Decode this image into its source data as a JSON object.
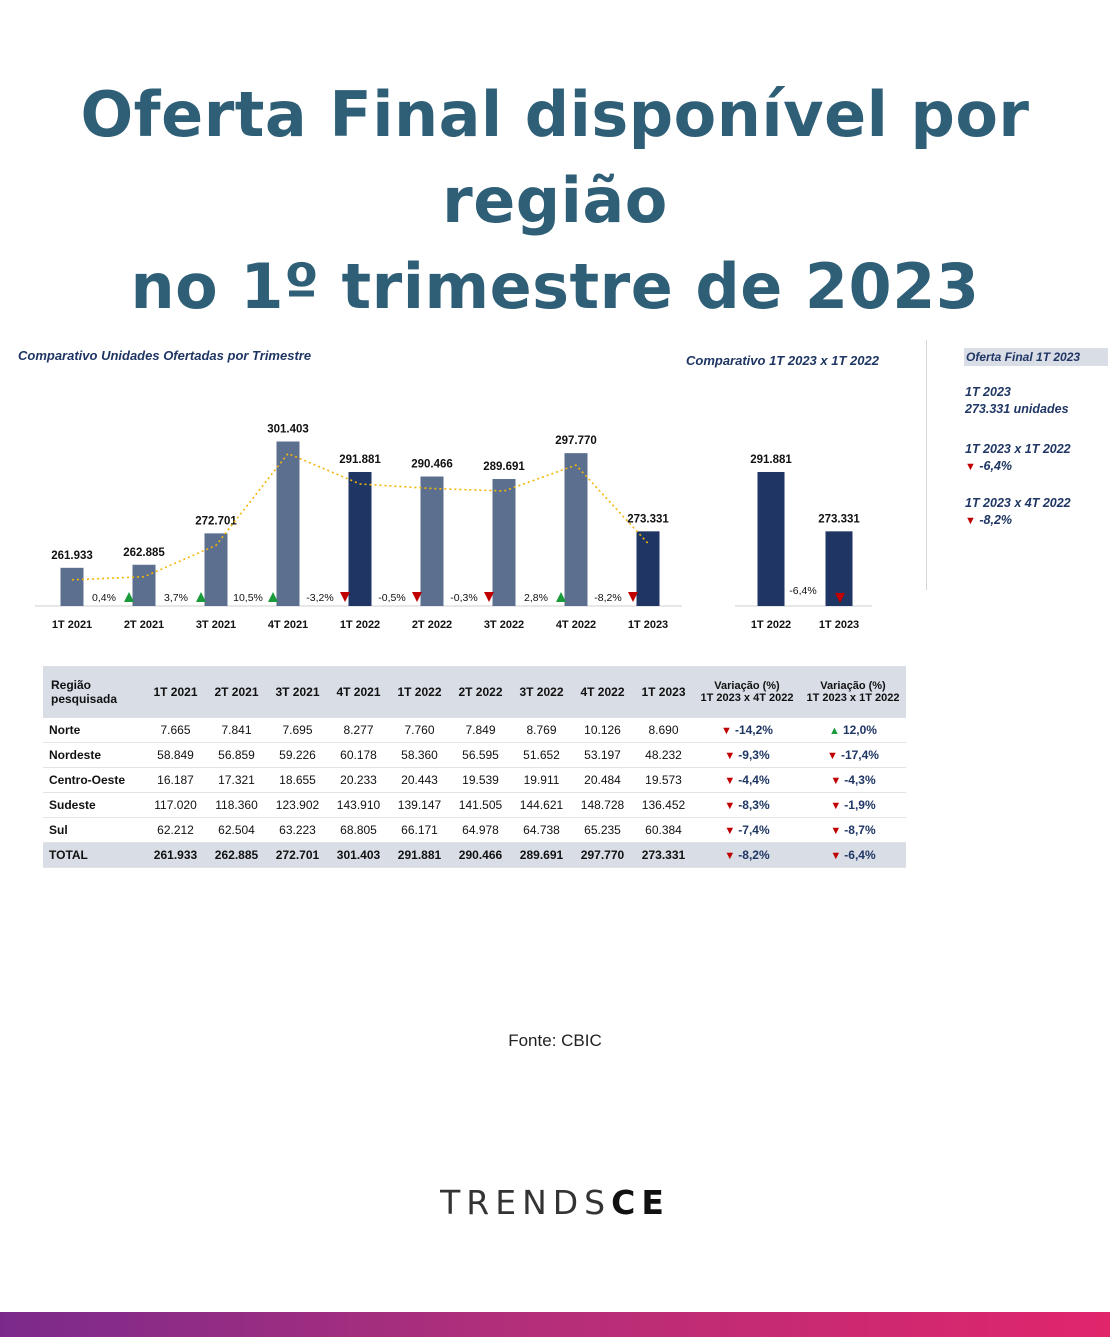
{
  "headline": {
    "line1": "Oferta Final disponível por região",
    "line2": "no 1º trimestre de 2023"
  },
  "colors": {
    "title": "#2e5f77",
    "bar_light": "#5c6f8f",
    "bar_dark": "#1f3664",
    "trend_line": "#f2b705",
    "arrow_down": "#c00000",
    "arrow_up": "#1a9a3a"
  },
  "chart_data": [
    {
      "type": "bar",
      "title": "Comparativo Unidades Ofertadas por Trimestre",
      "categories": [
        "1T 2021",
        "2T 2021",
        "3T 2021",
        "4T 2021",
        "1T 2022",
        "2T 2022",
        "3T 2022",
        "4T 2022",
        "1T 2023"
      ],
      "values": [
        261933,
        262885,
        272701,
        301403,
        291881,
        290466,
        289691,
        297770,
        273331
      ],
      "value_labels": [
        "261.933",
        "262.885",
        "272.701",
        "301.403",
        "291.881",
        "290.466",
        "289.691",
        "297.770",
        "273.331"
      ],
      "highlighted": [
        false,
        false,
        false,
        false,
        true,
        false,
        false,
        false,
        true
      ],
      "variations": [
        {
          "label": "0,4%",
          "dir": "up"
        },
        {
          "label": "3,7%",
          "dir": "up"
        },
        {
          "label": "10,5%",
          "dir": "up"
        },
        {
          "label": "-3,2%",
          "dir": "down"
        },
        {
          "label": "-0,5%",
          "dir": "down"
        },
        {
          "label": "-0,3%",
          "dir": "down"
        },
        {
          "label": "2,8%",
          "dir": "up"
        },
        {
          "label": "-8,2%",
          "dir": "down"
        }
      ],
      "trend_line": true,
      "ylim": [
        250000,
        305000
      ]
    },
    {
      "type": "bar",
      "title": "Comparativo 1T 2023 x 1T 2022",
      "categories": [
        "1T 2022",
        "1T 2023"
      ],
      "values": [
        291881,
        273331
      ],
      "value_labels": [
        "291.881",
        "273.331"
      ],
      "variation": {
        "label": "-6,4%",
        "dir": "down"
      },
      "ylim": [
        250000,
        305000
      ]
    }
  ],
  "side_panel": {
    "title": "Oferta Final 1T 2023",
    "period": "1T 2023",
    "units": "273.331 unidades",
    "cmp1_label": "1T 2023 x 1T 2022",
    "cmp1_value": "-6,4%",
    "cmp2_label": "1T 2023 x 4T 2022",
    "cmp2_value": "-8,2%"
  },
  "table": {
    "headers": {
      "region": [
        "Região",
        "pesquisada"
      ],
      "periods": [
        "1T 2021",
        "2T 2021",
        "3T 2021",
        "4T 2021",
        "1T 2022",
        "2T 2022",
        "3T 2022",
        "4T 2022",
        "1T 2023"
      ],
      "var1": [
        "Variação (%)",
        "1T 2023 x 4T 2022"
      ],
      "var2": [
        "Variação (%)",
        "1T 2023 x 1T 2022"
      ]
    },
    "rows": [
      {
        "region": "Norte",
        "values": [
          "7.665",
          "7.841",
          "7.695",
          "8.277",
          "7.760",
          "7.849",
          "8.769",
          "10.126",
          "8.690"
        ],
        "var1": "-14,2%",
        "var1_dir": "down",
        "var2": "12,0%",
        "var2_dir": "up"
      },
      {
        "region": "Nordeste",
        "values": [
          "58.849",
          "56.859",
          "59.226",
          "60.178",
          "58.360",
          "56.595",
          "51.652",
          "53.197",
          "48.232"
        ],
        "var1": "-9,3%",
        "var1_dir": "down",
        "var2": "-17,4%",
        "var2_dir": "down"
      },
      {
        "region": "Centro-Oeste",
        "values": [
          "16.187",
          "17.321",
          "18.655",
          "20.233",
          "20.443",
          "19.539",
          "19.911",
          "20.484",
          "19.573"
        ],
        "var1": "-4,4%",
        "var1_dir": "down",
        "var2": "-4,3%",
        "var2_dir": "down"
      },
      {
        "region": "Sudeste",
        "values": [
          "117.020",
          "118.360",
          "123.902",
          "143.910",
          "139.147",
          "141.505",
          "144.621",
          "148.728",
          "136.452"
        ],
        "var1": "-8,3%",
        "var1_dir": "down",
        "var2": "-1,9%",
        "var2_dir": "down"
      },
      {
        "region": "Sul",
        "values": [
          "62.212",
          "62.504",
          "63.223",
          "68.805",
          "66.171",
          "64.978",
          "64.738",
          "65.235",
          "60.384"
        ],
        "var1": "-7,4%",
        "var1_dir": "down",
        "var2": "-8,7%",
        "var2_dir": "down"
      }
    ],
    "total": {
      "region": "TOTAL",
      "values": [
        "261.933",
        "262.885",
        "272.701",
        "301.403",
        "291.881",
        "290.466",
        "289.691",
        "297.770",
        "273.331"
      ],
      "var1": "-8,2%",
      "var1_dir": "down",
      "var2": "-6,4%",
      "var2_dir": "down"
    }
  },
  "source": "Fonte: CBIC",
  "logo": {
    "light": "TRENDS",
    "bold": "CE"
  }
}
